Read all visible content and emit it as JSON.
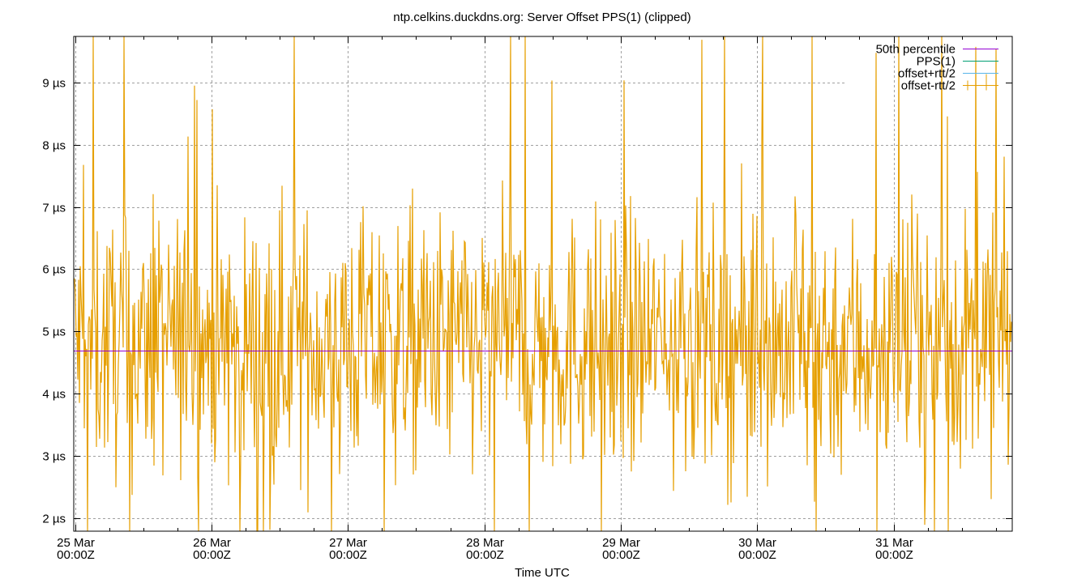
{
  "chart_data": {
    "type": "line",
    "title": "ntp.celkins.duckdns.org: Server Offset PPS(1) (clipped)",
    "xlabel": "Time UTC",
    "ylabel": "",
    "y_unit": "µs",
    "ylim": [
      1.79,
      9.74
    ],
    "yticks": [
      {
        "value": 2,
        "label": "2 µs"
      },
      {
        "value": 3,
        "label": "3 µs"
      },
      {
        "value": 4,
        "label": "4 µs"
      },
      {
        "value": 5,
        "label": "5 µs"
      },
      {
        "value": 6,
        "label": "6 µs"
      },
      {
        "value": 7,
        "label": "7 µs"
      },
      {
        "value": 8,
        "label": "8 µs"
      },
      {
        "value": 9,
        "label": "9 µs"
      }
    ],
    "xlim_days": [
      -0.01,
      6.87
    ],
    "xticks": [
      {
        "day": 0,
        "label1": "25 Mar",
        "label2": "00:00Z"
      },
      {
        "day": 1,
        "label1": "26 Mar",
        "label2": "00:00Z"
      },
      {
        "day": 2,
        "label1": "27 Mar",
        "label2": "00:00Z"
      },
      {
        "day": 3,
        "label1": "28 Mar",
        "label2": "00:00Z"
      },
      {
        "day": 4,
        "label1": "29 Mar",
        "label2": "00:00Z"
      },
      {
        "day": 5,
        "label1": "30 Mar",
        "label2": "00:00Z"
      },
      {
        "day": 6,
        "label1": "31 Mar",
        "label2": "00:00Z"
      }
    ],
    "minor_tick_hours": 6,
    "grid": true,
    "legend_position": "top-right",
    "series": [
      {
        "name": "50th percentile",
        "color": "#9400d3",
        "style": "hline",
        "value": 4.69
      },
      {
        "name": "PPS(1)",
        "color": "#009e73",
        "style": "line",
        "values": []
      },
      {
        "name": "offset+rtt/2",
        "color": "#56b4e9",
        "style": "line",
        "values": []
      },
      {
        "name": "offset-rtt/2",
        "color": "#e69f00",
        "style": "errorbar-noise",
        "summary": {
          "mean": 4.8,
          "typical_min": 2.5,
          "typical_max": 7.5,
          "clipped_top": 9.74,
          "clipped_bottom": 1.79,
          "samples_per_pixel": 1
        }
      }
    ]
  }
}
